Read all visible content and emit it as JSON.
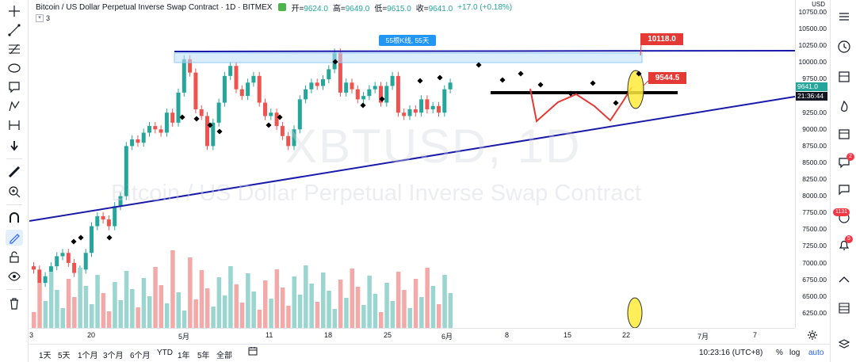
{
  "symbol": {
    "title": "Bitcoin / US Dollar Perpetual Inverse Swap Contract · 1D · BITMEX",
    "open_label": "开=",
    "open_value": "9624.0",
    "high_label": "高=",
    "high_value": "9649.0",
    "low_label": "低=",
    "low_value": "9615.0",
    "close_label": "收=",
    "close_value": "9641.0",
    "change": "+17.0 (+0.18%)",
    "volume_count": "3"
  },
  "watermark": {
    "ticker": "XBTUSD, 1D",
    "name": "Bitcoin / US Dollar Perpetual Inverse Swap Contract"
  },
  "annotations": {
    "range_label": "55根K线, 55天",
    "level_high": "10118.0",
    "level_current": "9544.5"
  },
  "price_axis": {
    "currency": "USD",
    "ticks": [
      "10750.00",
      "10500.00",
      "10250.00",
      "10000.00",
      "9750.00",
      "9500.00",
      "9250.00",
      "9000.00",
      "8750.00",
      "8500.00",
      "8250.00",
      "8000.00",
      "7750.00",
      "7500.00",
      "7250.00",
      "7000.00",
      "6750.00",
      "6500.00",
      "6250.00"
    ],
    "last_price": "9641.0",
    "countdown": "21:36:44",
    "last_price_color": "#26a69a",
    "countdown_color": "#131722"
  },
  "time_axis": {
    "labels": [
      "3",
      "20",
      "5月",
      "11",
      "18",
      "25",
      "6月",
      "8",
      "15",
      "22",
      "7月",
      "7"
    ]
  },
  "bottom_bar": {
    "periods": [
      "1天",
      "5天",
      "1个月",
      "3个月",
      "6个月",
      "YTD",
      "1年",
      "5年",
      "全部"
    ],
    "clock": "10:23:16 (UTC+8)",
    "percent": "%",
    "log": "log",
    "auto": "auto"
  },
  "right_panel": {
    "badges": [
      "2",
      "1131",
      "5"
    ]
  },
  "colors": {
    "up": "#26a69a",
    "down": "#ef5350",
    "trendline": "#1a1aaa",
    "callout_red": "#e53935",
    "highlight_yellow": "#ffeb3b"
  },
  "icons": [
    "crosshair-icon",
    "trendline-icon",
    "fib-icon",
    "ellipse-icon",
    "note-icon",
    "pattern-icon",
    "measure-icon",
    "arrow-down-icon",
    "ruler-icon",
    "zoom-in-icon",
    "magnet-icon",
    "pen-icon",
    "lock-icon",
    "eye-icon",
    "trash-icon"
  ]
}
